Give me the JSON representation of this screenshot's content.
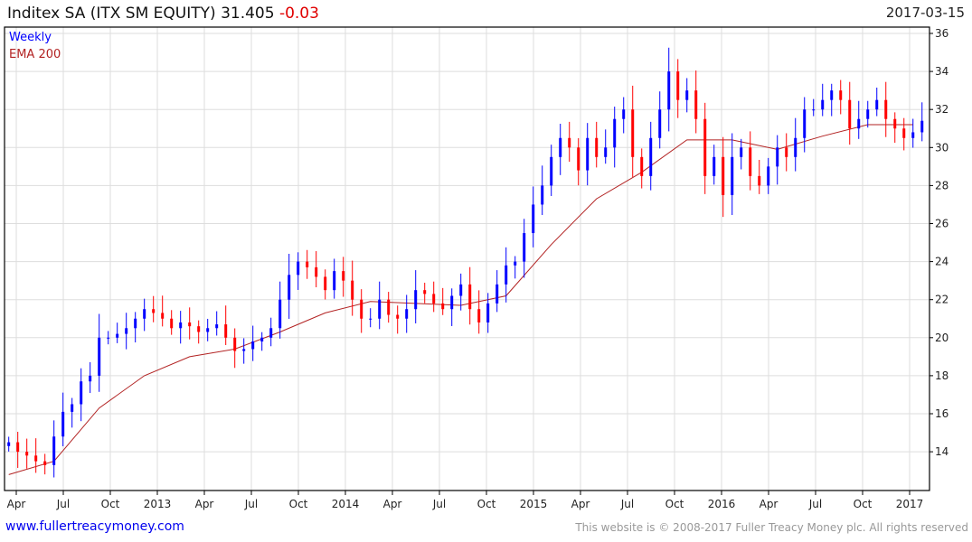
{
  "header": {
    "title": "Inditex SA (ITX SM EQUITY)",
    "last": "31.405",
    "change": "-0.03",
    "date": "2017-03-15"
  },
  "footer": {
    "link": "www.fullertreacymoney.com",
    "copyright": "This website is © 2008-2017 Fuller Treacy Money plc. All rights reserved"
  },
  "colors": {
    "up": "#0000ff",
    "down": "#ff0000",
    "ema": "#b22222",
    "grid": "#dddddd"
  },
  "chart_data": {
    "type": "candlestick",
    "legend": [
      "Weekly",
      "EMA 200"
    ],
    "legend_placement": "top-left",
    "y_ticks": [
      14,
      16,
      18,
      20,
      22,
      24,
      26,
      28,
      30,
      32,
      34,
      36
    ],
    "ylim": [
      12,
      36.3
    ],
    "x_ticks": [
      {
        "label": "Apr",
        "t": 2012.25
      },
      {
        "label": "Jul",
        "t": 2012.5
      },
      {
        "label": "Oct",
        "t": 2012.75
      },
      {
        "label": "2013",
        "t": 2013.0
      },
      {
        "label": "Apr",
        "t": 2013.25
      },
      {
        "label": "Jul",
        "t": 2013.5
      },
      {
        "label": "Oct",
        "t": 2013.75
      },
      {
        "label": "2014",
        "t": 2014.0
      },
      {
        "label": "Apr",
        "t": 2014.25
      },
      {
        "label": "Jul",
        "t": 2014.5
      },
      {
        "label": "Oct",
        "t": 2014.75
      },
      {
        "label": "2015",
        "t": 2015.0
      },
      {
        "label": "Apr",
        "t": 2015.25
      },
      {
        "label": "Jul",
        "t": 2015.5
      },
      {
        "label": "Oct",
        "t": 2015.75
      },
      {
        "label": "2016",
        "t": 2016.0
      },
      {
        "label": "Apr",
        "t": 2016.25
      },
      {
        "label": "Jul",
        "t": 2016.5
      },
      {
        "label": "Oct",
        "t": 2016.75
      },
      {
        "label": "2017",
        "t": 2017.0
      }
    ],
    "price": {
      "start_year": 2012.21,
      "step_years": 0.04808,
      "closes": [
        14.5,
        14.0,
        13.8,
        13.5,
        13.3,
        14.8,
        16.1,
        16.5,
        17.7,
        18.0,
        20.0,
        20.0,
        20.2,
        20.5,
        21.0,
        21.5,
        21.3,
        21.0,
        20.5,
        20.8,
        20.6,
        20.3,
        20.5,
        20.7,
        20.0,
        19.3,
        19.4,
        19.8,
        20.0,
        20.5,
        22.0,
        23.3,
        24.0,
        23.7,
        23.2,
        22.5,
        23.5,
        23.0,
        22.0,
        21.0,
        21.0,
        22.0,
        21.2,
        21.0,
        21.5,
        22.5,
        22.3,
        21.8,
        21.5,
        22.2,
        22.8,
        21.5,
        20.8,
        21.8,
        22.8,
        23.8,
        24.0,
        25.5,
        27.0,
        28.0,
        29.5,
        30.5,
        30.0,
        28.8,
        30.5,
        29.5,
        30.0,
        31.5,
        32.0,
        29.5,
        28.5,
        30.5,
        32.0,
        34.0,
        32.5,
        33.0,
        31.5,
        28.5,
        29.5,
        27.5,
        29.5,
        30.0,
        28.5,
        28.0,
        29.0,
        30.0,
        29.5,
        30.5,
        32.0,
        32.0,
        32.5,
        33.0,
        32.5,
        31.0,
        31.5,
        32.0,
        32.5,
        31.5,
        31.0,
        30.5,
        30.8,
        31.405
      ]
    },
    "ema": {
      "start_year": 2012.21,
      "step_years": 0.2404,
      "values": [
        12.8,
        13.5,
        16.3,
        18.0,
        19.0,
        19.4,
        20.3,
        21.3,
        21.9,
        21.8,
        21.7,
        22.2,
        24.9,
        27.3,
        28.7,
        30.4,
        30.4,
        29.9,
        30.6,
        31.2,
        31.2
      ]
    }
  }
}
